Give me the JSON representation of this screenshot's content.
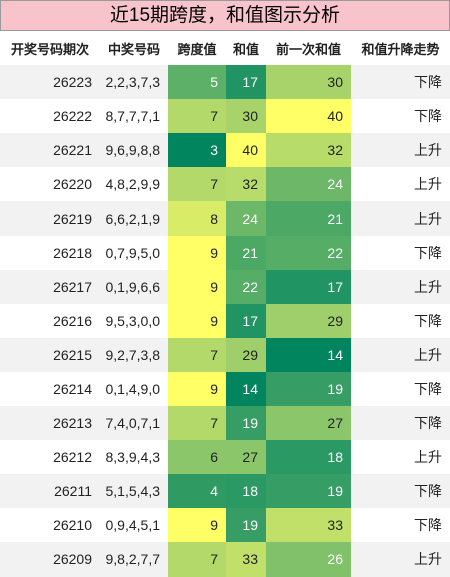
{
  "header": {
    "title": "近15期跨度，和值图示分析"
  },
  "table": {
    "columns": [
      "开奖号码期次",
      "中奖号码",
      "跨度值",
      "和值",
      "前一次和值",
      "和值升降走势"
    ],
    "rows": [
      [
        26223,
        "2,2,3,7,3",
        5,
        17,
        30,
        "下降"
      ],
      [
        26222,
        "8,7,7,7,1",
        7,
        30,
        40,
        "下降"
      ],
      [
        26221,
        "9,6,9,8,8",
        3,
        40,
        32,
        "上升"
      ],
      [
        26220,
        "4,8,2,9,9",
        7,
        32,
        24,
        "上升"
      ],
      [
        26219,
        "6,6,2,1,9",
        8,
        24,
        21,
        "上升"
      ],
      [
        26218,
        "0,7,9,5,0",
        9,
        21,
        22,
        "下降"
      ],
      [
        26217,
        "0,1,9,6,6",
        9,
        22,
        17,
        "上升"
      ],
      [
        26216,
        "9,5,3,0,0",
        9,
        17,
        29,
        "下降"
      ],
      [
        26215,
        "9,2,7,3,8",
        7,
        29,
        14,
        "上升"
      ],
      [
        26214,
        "0,1,4,9,0",
        9,
        14,
        19,
        "下降"
      ],
      [
        26213,
        "7,4,0,7,1",
        7,
        19,
        27,
        "下降"
      ],
      [
        26212,
        "8,3,9,4,3",
        6,
        27,
        18,
        "上升"
      ],
      [
        26211,
        "5,1,5,4,3",
        4,
        18,
        19,
        "下降"
      ],
      [
        26210,
        "0,9,4,5,1",
        9,
        19,
        33,
        "下降"
      ],
      [
        26209,
        "9,8,2,7,7",
        7,
        33,
        26,
        "上升"
      ]
    ],
    "heat_columns": [
      2,
      3,
      4
    ],
    "color_scale": {
      "low": "#00855f",
      "mid": "#8cc66b",
      "high": "#ffff66"
    }
  }
}
